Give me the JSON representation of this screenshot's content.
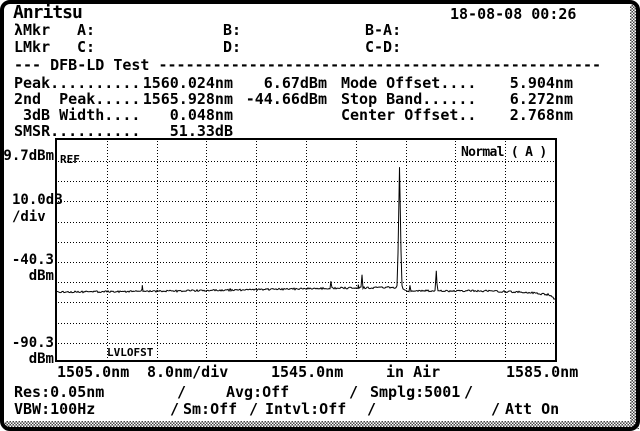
{
  "header": {
    "brand": "Anritsu",
    "datetime": "18-08-08 00:26"
  },
  "markers": {
    "lambda_label": "λMkr",
    "a_label": "A:",
    "b_label": "B:",
    "ba_label": "B-A:",
    "l_label": "LMkr",
    "c_label": "C:",
    "d_label": "D:",
    "cd_label": "C-D:"
  },
  "test": {
    "title": "--- DFB-LD Test -------------------------------------------------",
    "peak_label": "Peak..........",
    "peak_wl": "1560.024nm",
    "peak_lvl": "6.67dBm",
    "peak2_label": "2nd  Peak.....",
    "peak2_wl": "1565.928nm",
    "peak2_lvl": "-44.66dBm",
    "width_label": "3dB Width....",
    "width_val": "0.048nm",
    "smsr_label": "SMSR..........",
    "smsr_val": "51.33dB",
    "mode_offset_label": "Mode Offset....",
    "mode_offset_val": "5.904nm",
    "stop_band_label": "Stop Band......",
    "stop_band_val": "6.272nm",
    "center_offset_label": "Center Offset..",
    "center_offset_val": "2.768nm"
  },
  "chart": {
    "mode": "Normal ( A )",
    "ref": "REF",
    "lvlofst": "LVLOFST",
    "y_ref": "9.7dBm",
    "y_div": "10.0dB",
    "y_div2": "/div",
    "y_mid": "-40.3",
    "y_mid_unit": "dBm",
    "y_bot": "-90.3",
    "y_bot_unit": "dBm",
    "x_start": "1505.0nm",
    "x_div": "8.0nm/div",
    "x_mid": "1545.0nm",
    "x_medium": "in Air",
    "x_stop": "1585.0nm"
  },
  "status": {
    "res": "Res:0.05nm",
    "avg": "Avg:Off",
    "smplg": "Smplg:5001",
    "vbw": "VBW:100Hz",
    "sm": "Sm:Off",
    "intvl": "Intvl:Off",
    "att": "Att On",
    "sep": "/"
  },
  "chart_data": {
    "type": "line",
    "title": "DFB-LD Test optical spectrum",
    "x_range_nm": [
      1505.0,
      1585.0
    ],
    "x_per_div_nm": 8.0,
    "ref_level_dbm": 9.7,
    "db_per_div": 10.0,
    "x_axis_labels": [
      "1505.0nm",
      "8.0nm/div",
      "1545.0nm",
      "in Air",
      "1585.0nm"
    ],
    "y_axis_labels": [
      "9.7dBm",
      "10.0dB/div",
      "-40.3dBm",
      "-90.3dBm"
    ],
    "trace_mode": "Normal ( A )",
    "legend": "Normal ( A )",
    "peaks": [
      {
        "nm": 1560.024,
        "dbm": 6.67
      },
      {
        "nm": 1565.928,
        "dbm": -44.66
      }
    ],
    "spurs": [
      {
        "nm": 1518.7,
        "dbm": -51.8
      },
      {
        "nm": 1532.8,
        "dbm": -53.3
      },
      {
        "nm": 1549.0,
        "dbm": -49.8
      },
      {
        "nm": 1553.4,
        "dbm": -51.5
      },
      {
        "nm": 1554.0,
        "dbm": -46.6
      },
      {
        "nm": 1561.7,
        "dbm": -51.8
      }
    ],
    "noise_floor_dbm": [
      [
        1505.0,
        -55.2
      ],
      [
        1521.1,
        -54.8
      ],
      [
        1537.1,
        -54.0
      ],
      [
        1550.0,
        -53.2
      ],
      [
        1558.8,
        -52.9
      ],
      [
        1560.5,
        -53.2
      ],
      [
        1561.2,
        -54.6
      ],
      [
        1574.1,
        -54.6
      ],
      [
        1580.5,
        -55.3
      ],
      [
        1584.0,
        -56.5
      ],
      [
        1585.0,
        -58.8
      ]
    ]
  }
}
